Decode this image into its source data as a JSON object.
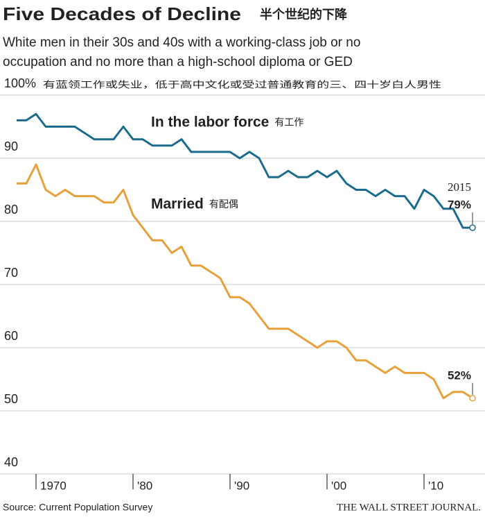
{
  "chart_data": {
    "type": "line",
    "title": "Five Decades of Decline",
    "title_cn": "半个世纪的下降",
    "subtitle": [
      "White men in their 30s and 40s with a working-class job or no",
      "occupation and no more than a high-school diploma or GED"
    ],
    "subtitle_cn": "有蓝领工作或失业，低于高中文化或受过普通教育的三、四十岁白人男性",
    "x": [
      1968,
      1969,
      1970,
      1971,
      1972,
      1973,
      1974,
      1975,
      1976,
      1977,
      1978,
      1979,
      1980,
      1981,
      1982,
      1983,
      1984,
      1985,
      1986,
      1987,
      1988,
      1989,
      1990,
      1991,
      1992,
      1993,
      1994,
      1995,
      1996,
      1997,
      1998,
      1999,
      2000,
      2001,
      2002,
      2003,
      2004,
      2005,
      2006,
      2007,
      2008,
      2009,
      2010,
      2011,
      2012,
      2013,
      2014,
      2015
    ],
    "series": [
      {
        "name": "In the labor force",
        "name_cn": "有工作",
        "color": "#1b6b8c",
        "values": [
          96,
          96,
          97,
          95,
          95,
          95,
          95,
          94,
          93,
          93,
          93,
          95,
          93,
          93,
          92,
          92,
          92,
          93,
          91,
          91,
          91,
          91,
          91,
          90,
          91,
          90,
          87,
          87,
          88,
          87,
          87,
          88,
          87,
          88,
          86,
          85,
          85,
          84,
          85,
          84,
          84,
          82,
          85,
          84,
          82,
          82,
          79,
          79
        ],
        "value_labels": [
          null,
          null,
          null,
          null,
          null,
          null,
          null,
          null,
          null,
          null,
          null,
          null,
          null,
          null,
          null,
          null,
          null,
          null,
          null,
          null,
          null,
          null,
          null,
          null,
          null,
          null,
          null,
          null,
          null,
          null,
          null,
          null,
          null,
          null,
          null,
          null,
          null,
          null,
          null,
          null,
          null,
          null,
          null,
          null,
          null,
          null,
          null,
          "79%"
        ]
      },
      {
        "name": "Married",
        "name_cn": "有配偶",
        "color": "#e8a03a",
        "values": [
          86,
          86,
          89,
          85,
          84,
          85,
          84,
          84,
          84,
          83,
          83,
          85,
          81,
          79,
          77,
          77,
          75,
          76,
          73,
          73,
          72,
          71,
          68,
          68,
          67,
          65,
          63,
          63,
          63,
          62,
          61,
          60,
          61,
          61,
          60,
          58,
          58,
          57,
          56,
          57,
          56,
          56,
          56,
          55,
          52,
          53,
          53,
          52
        ],
        "value_labels": [
          null,
          null,
          null,
          null,
          null,
          null,
          null,
          null,
          null,
          null,
          null,
          null,
          null,
          null,
          null,
          null,
          null,
          null,
          null,
          null,
          null,
          null,
          null,
          null,
          null,
          null,
          null,
          null,
          null,
          null,
          null,
          null,
          null,
          null,
          null,
          null,
          null,
          null,
          null,
          null,
          null,
          null,
          null,
          null,
          null,
          null,
          null,
          "52%"
        ]
      }
    ],
    "annotation": "2015",
    "xlim": [
      1967,
      2016
    ],
    "xticks": [
      {
        "value": 1970,
        "label": "1970"
      },
      {
        "value": 1980,
        "label": "'80"
      },
      {
        "value": 1990,
        "label": "'90"
      },
      {
        "value": 2000,
        "label": "'00"
      },
      {
        "value": 2010,
        "label": "'10"
      }
    ],
    "ylim": [
      40,
      100
    ],
    "yticks": [
      40,
      50,
      60,
      70,
      80,
      90,
      {
        "value": 100,
        "label": "100%"
      }
    ],
    "grid": true,
    "source": "Source: Current Population Survey",
    "credit": "THE WALL STREET JOURNAL."
  }
}
